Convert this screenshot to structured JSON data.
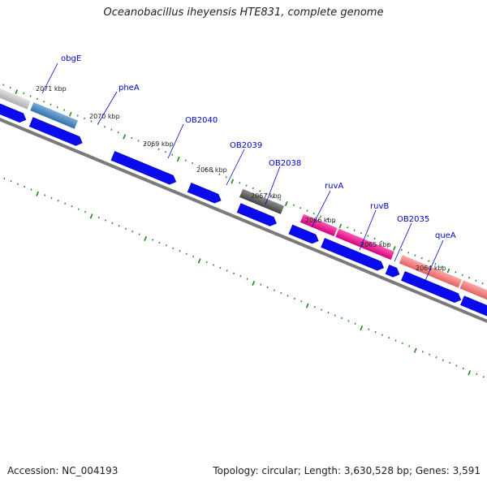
{
  "title": "Oceanobacillus iheyensis HTE831, complete genome",
  "footer": {
    "accession": "Accession: NC_004193",
    "summary": "Topology: circular; Length: 3,630,528 bp; Genes: 3,591"
  },
  "colors": {
    "cds_blue": "#0a0aee",
    "backbone": "#7a7a7a",
    "tick_green": "#1a8a1a",
    "label_blue": "#0000cc",
    "gene_grey": "#c8c8c8",
    "gene_steel": "#4f86b8",
    "gene_darkgrey": "#666666",
    "gene_magenta": "#ee1493",
    "gene_salmon": "#f08080"
  },
  "kbp_labels": [
    "2071 kbp",
    "2070 kbp",
    "2069 kbp",
    "2068 kbp",
    "2067 kbp",
    "2066 kbp",
    "2065 kbp",
    "2064 kbp"
  ],
  "gene_labels": [
    "obgE",
    "pheA",
    "OB2040",
    "OB2039",
    "OB2038",
    "ruvA",
    "ruvB",
    "OB2035",
    "queA"
  ]
}
